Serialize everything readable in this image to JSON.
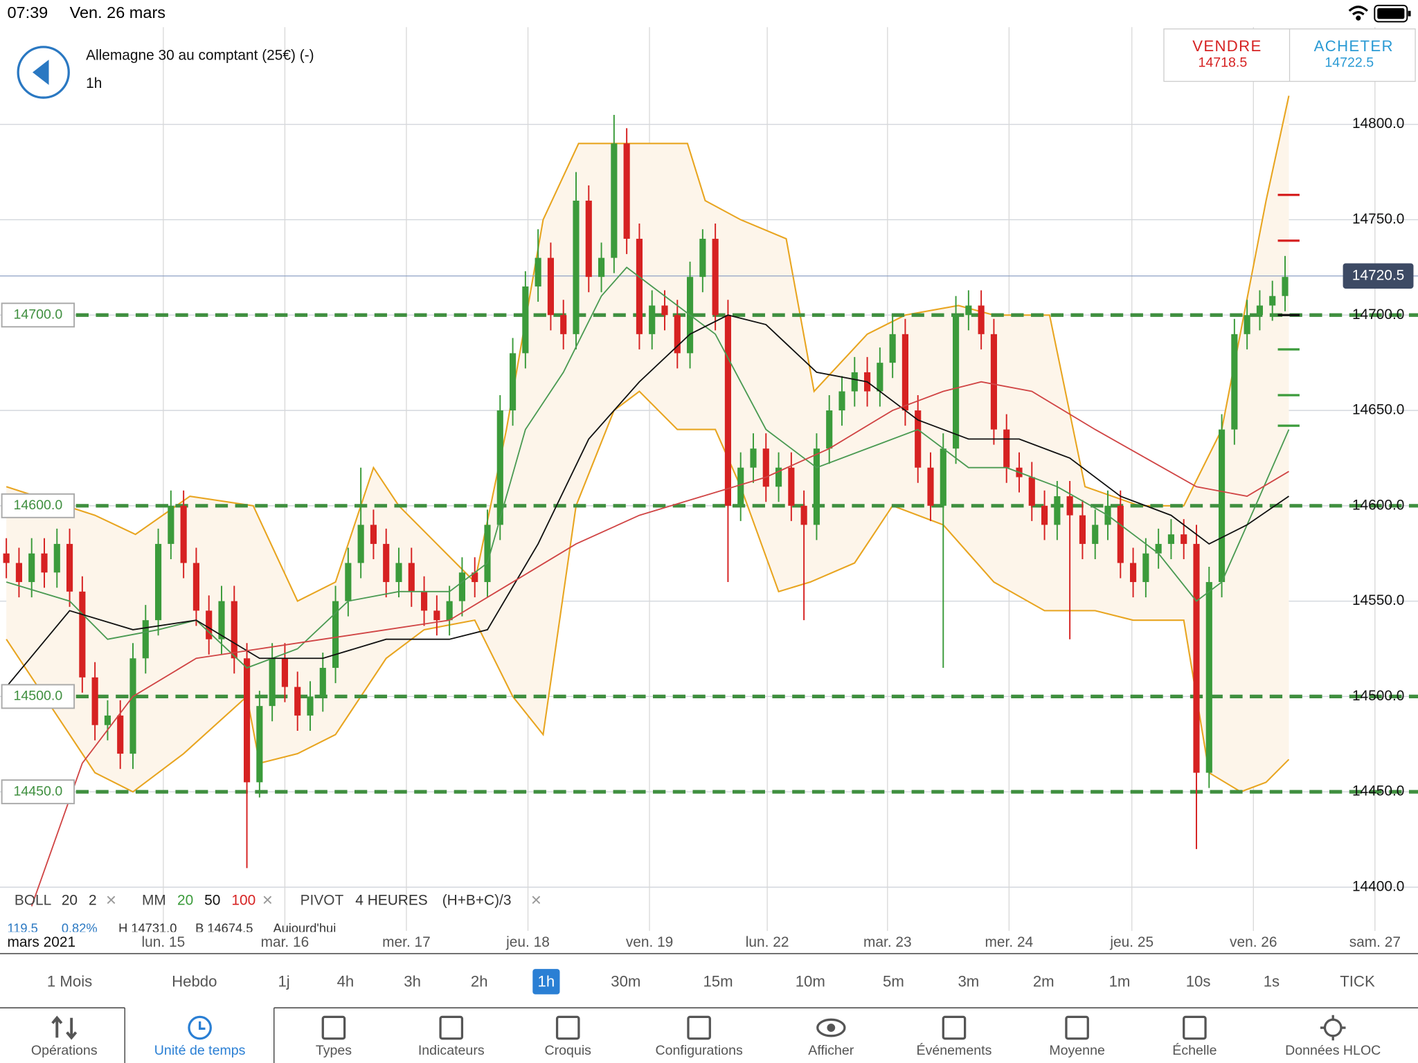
{
  "status_bar": {
    "time": "07:39",
    "date": "Ven. 26 mars"
  },
  "header": {
    "instrument": "Allemagne 30 au comptant (25€) (-)",
    "timeframe": "1h"
  },
  "quote": {
    "sell_label": "VENDRE",
    "sell_price": 14718.5,
    "buy_label": "ACHETER",
    "buy_price": 14722.5
  },
  "indicators": {
    "close_icon": "×",
    "boll": {
      "label": "BOLL",
      "period": 20,
      "deviation": 2
    },
    "mm": {
      "label": "MM",
      "periods": [
        20,
        50,
        100
      ]
    },
    "pivot": {
      "label": "PIVOT",
      "period": "4 HEURES",
      "formula": "(H+B+C)/3"
    },
    "info_row": [
      "119.5",
      "0.82%",
      "H 14731.0",
      "B 14674.5",
      "Aujourd'hui"
    ]
  },
  "chart_data": {
    "type": "candlestick",
    "open": [
      14575,
      14570,
      14560,
      14575,
      14565,
      14580,
      14555,
      14510,
      14485,
      14490,
      14470,
      14520,
      14540,
      14580,
      14600,
      14570,
      14545,
      14530,
      14550,
      14520,
      14455,
      14495,
      14520,
      14505,
      14490,
      14500,
      14515,
      14550,
      14570,
      14590,
      14580,
      14560,
      14570,
      14555,
      14545,
      14540,
      14550,
      14565,
      14560,
      14590,
      14650,
      14680,
      14715,
      14730,
      14700,
      14690,
      14760,
      14720,
      14730,
      14790,
      14740,
      14690,
      14705,
      14700,
      14680,
      14720,
      14740,
      14700,
      14600,
      14620,
      14630,
      14610,
      14620,
      14600,
      14590,
      14630,
      14650,
      14660,
      14670,
      14660,
      14675,
      14690,
      14650,
      14620,
      14600,
      14630,
      14700,
      14705,
      14690,
      14640,
      14620,
      14615,
      14600,
      14590,
      14605,
      14595,
      14580,
      14590,
      14600,
      14570,
      14560,
      14575,
      14580,
      14585,
      14580,
      14460,
      14560,
      14640,
      14690,
      14700,
      14705,
      14710
    ],
    "high": [
      14583,
      14578,
      14583,
      14583,
      14588,
      14588,
      14563,
      14518,
      14498,
      14498,
      14528,
      14548,
      14588,
      14608,
      14608,
      14578,
      14553,
      14558,
      14558,
      14528,
      14503,
      14528,
      14528,
      14513,
      14508,
      14523,
      14558,
      14578,
      14620,
      14598,
      14588,
      14578,
      14578,
      14563,
      14553,
      14558,
      14573,
      14573,
      14598,
      14658,
      14688,
      14723,
      14745,
      14738,
      14708,
      14775,
      14768,
      14738,
      14805,
      14798,
      14748,
      14713,
      14713,
      14708,
      14728,
      14745,
      14748,
      14708,
      14628,
      14638,
      14638,
      14628,
      14628,
      14608,
      14638,
      14658,
      14668,
      14678,
      14678,
      14683,
      14700,
      14698,
      14658,
      14628,
      14638,
      14710,
      14713,
      14713,
      14698,
      14648,
      14628,
      14623,
      14608,
      14613,
      14613,
      14603,
      14598,
      14608,
      14608,
      14578,
      14583,
      14588,
      14593,
      14593,
      14590,
      14568,
      14648,
      14698,
      14708,
      14713,
      14718,
      14731
    ],
    "low": [
      14562,
      14552,
      14552,
      14557,
      14557,
      14547,
      14502,
      14477,
      14477,
      14462,
      14462,
      14512,
      14532,
      14572,
      14562,
      14537,
      14522,
      14522,
      14512,
      14410,
      14447,
      14487,
      14497,
      14482,
      14482,
      14492,
      14507,
      14542,
      14562,
      14572,
      14552,
      14552,
      14547,
      14537,
      14532,
      14532,
      14542,
      14552,
      14552,
      14582,
      14642,
      14672,
      14707,
      14692,
      14682,
      14682,
      14712,
      14712,
      14722,
      14732,
      14682,
      14682,
      14692,
      14672,
      14672,
      14712,
      14692,
      14560,
      14592,
      14612,
      14602,
      14602,
      14592,
      14540,
      14582,
      14622,
      14642,
      14652,
      14652,
      14652,
      14667,
      14642,
      14612,
      14592,
      14515,
      14622,
      14692,
      14682,
      14632,
      14612,
      14607,
      14592,
      14582,
      14582,
      14530,
      14572,
      14572,
      14582,
      14562,
      14552,
      14552,
      14567,
      14572,
      14572,
      14420,
      14452,
      14552,
      14632,
      14682,
      14692,
      14697,
      14702
    ],
    "close": [
      14570,
      14560,
      14575,
      14565,
      14580,
      14555,
      14510,
      14485,
      14490,
      14470,
      14520,
      14540,
      14580,
      14600,
      14570,
      14545,
      14530,
      14550,
      14520,
      14455,
      14495,
      14520,
      14505,
      14490,
      14500,
      14515,
      14550,
      14570,
      14590,
      14580,
      14560,
      14570,
      14555,
      14545,
      14540,
      14550,
      14565,
      14560,
      14590,
      14650,
      14680,
      14715,
      14730,
      14700,
      14690,
      14760,
      14720,
      14730,
      14790,
      14740,
      14690,
      14705,
      14700,
      14680,
      14720,
      14740,
      14700,
      14600,
      14620,
      14630,
      14610,
      14620,
      14600,
      14590,
      14630,
      14650,
      14660,
      14670,
      14660,
      14675,
      14690,
      14650,
      14620,
      14600,
      14630,
      14700,
      14705,
      14690,
      14640,
      14620,
      14615,
      14600,
      14590,
      14605,
      14595,
      14580,
      14590,
      14600,
      14570,
      14560,
      14575,
      14580,
      14585,
      14580,
      14460,
      14560,
      14640,
      14690,
      14700,
      14705,
      14710,
      14720
    ],
    "up_color": "#3b9b3b",
    "down_color": "#d62222",
    "xlim": [
      -0.5,
      111.5
    ],
    "x_axis_caption": "mars 2021",
    "xticks": [
      {
        "value": 12.4,
        "label": "lun. 15"
      },
      {
        "value": 22.0,
        "label": "mar. 16"
      },
      {
        "value": 31.6,
        "label": "mer. 17"
      },
      {
        "value": 41.2,
        "label": "jeu. 18"
      },
      {
        "value": 50.8,
        "label": "ven. 19"
      },
      {
        "value": 60.1,
        "label": "lun. 22"
      },
      {
        "value": 69.6,
        "label": "mar. 23"
      },
      {
        "value": 79.2,
        "label": "mer. 24"
      },
      {
        "value": 88.9,
        "label": "jeu. 25"
      },
      {
        "value": 98.5,
        "label": "ven. 26"
      },
      {
        "value": 108.1,
        "label": "sam. 27"
      }
    ],
    "ylim": [
      14377,
      14851
    ],
    "yticks": [
      {
        "value": 14400,
        "label": "14400.0"
      },
      {
        "value": 14450,
        "label": "14450.0"
      },
      {
        "value": 14500,
        "label": "14500.0"
      },
      {
        "value": 14550,
        "label": "14550.0"
      },
      {
        "value": 14600,
        "label": "14600.0"
      },
      {
        "value": 14650,
        "label": "14650.0"
      },
      {
        "value": 14700,
        "label": "14700.0"
      },
      {
        "value": 14750,
        "label": "14750.0"
      },
      {
        "value": 14800,
        "label": "14800.0"
      }
    ],
    "grid": true,
    "bollinger": {
      "color": "#e8a520",
      "fill": "#fdf5ea",
      "upper": {
        "x": [
          0,
          7,
          10.2,
          14.5,
          19.5,
          23,
          26,
          29,
          31,
          34,
          37,
          39.5,
          42.4,
          45.2,
          49.5,
          53.8,
          55.2,
          58,
          61.6,
          63.8,
          68,
          71,
          75.2,
          78,
          82.4,
          85.2,
          89.5,
          93,
          96,
          99.5,
          101.3
        ],
        "values": [
          14610,
          14595,
          14585,
          14605,
          14600,
          14550,
          14560,
          14620,
          14600,
          14580,
          14560,
          14640,
          14750,
          14790,
          14790,
          14790,
          14760,
          14750,
          14740,
          14660,
          14690,
          14700,
          14705,
          14700,
          14700,
          14610,
          14600,
          14600,
          14640,
          14760,
          14815
        ]
      },
      "lower": {
        "x": [
          0,
          7,
          10,
          14,
          19,
          20,
          23,
          26,
          30,
          33,
          37,
          40,
          42.4,
          45,
          48,
          50,
          53,
          56,
          58,
          61,
          63.5,
          67,
          70,
          74,
          78,
          82,
          86,
          89,
          93,
          95,
          97.5,
          99.5,
          101.3
        ],
        "values": [
          14530,
          14460,
          14450,
          14470,
          14500,
          14465,
          14470,
          14480,
          14520,
          14535,
          14540,
          14500,
          14480,
          14600,
          14650,
          14660,
          14640,
          14640,
          14610,
          14555,
          14560,
          14570,
          14600,
          14590,
          14560,
          14545,
          14545,
          14540,
          14540,
          14460,
          14450,
          14455,
          14467
        ]
      }
    },
    "series": [
      {
        "color": "#4a9a52",
        "x": [
          0,
          5,
          8,
          12,
          15,
          19,
          23,
          27,
          31,
          35,
          38,
          41,
          44,
          47,
          49,
          52,
          56,
          60,
          64,
          68,
          72,
          76,
          79,
          83,
          87,
          91,
          94,
          96,
          99,
          101.3
        ],
        "values": [
          14560,
          14550,
          14530,
          14535,
          14540,
          14515,
          14525,
          14550,
          14555,
          14555,
          14570,
          14640,
          14670,
          14710,
          14725,
          14710,
          14690,
          14640,
          14620,
          14630,
          14640,
          14620,
          14620,
          14610,
          14595,
          14575,
          14550,
          14560,
          14605,
          14640
        ]
      },
      {
        "color": "#111111",
        "x": [
          0,
          5,
          10,
          15,
          20,
          25,
          30,
          35,
          38,
          42,
          46,
          50,
          54,
          57,
          60,
          64,
          68,
          72,
          76,
          80,
          84,
          88,
          92,
          95,
          98,
          101.3
        ],
        "values": [
          14505,
          14545,
          14535,
          14540,
          14520,
          14520,
          14530,
          14530,
          14535,
          14580,
          14635,
          14665,
          14690,
          14700,
          14695,
          14670,
          14665,
          14645,
          14635,
          14635,
          14625,
          14605,
          14595,
          14580,
          14590,
          14605
        ]
      },
      {
        "color": "#d04444",
        "x": [
          2,
          6,
          10,
          15,
          20,
          25,
          30,
          35,
          40,
          45,
          50,
          55,
          60,
          65,
          70,
          74,
          77,
          81,
          86,
          90,
          94,
          98,
          101.3
        ],
        "values": [
          14390,
          14465,
          14500,
          14520,
          14525,
          14530,
          14535,
          14540,
          14560,
          14580,
          14595,
          14605,
          14615,
          14630,
          14650,
          14660,
          14665,
          14660,
          14640,
          14625,
          14610,
          14605,
          14618
        ]
      }
    ],
    "pivot_color": "#3f8f3f",
    "pivot_levels": [
      {
        "value": 14700,
        "label": "14700.0"
      },
      {
        "value": 14600,
        "label": "14600.0"
      },
      {
        "value": 14500,
        "label": "14500.0"
      },
      {
        "value": 14450,
        "label": "14450.0"
      }
    ],
    "pivot_markers": [
      {
        "value": 14763,
        "color": "#d62222"
      },
      {
        "value": 14739,
        "color": "#d62222"
      },
      {
        "value": 14700,
        "color": "#111111"
      },
      {
        "value": 14682,
        "color": "#3b9b3b"
      },
      {
        "value": 14658,
        "color": "#3b9b3b"
      },
      {
        "value": 14642,
        "color": "#3b9b3b"
      }
    ],
    "current_price": 14720.5
  },
  "timeframes": {
    "items": [
      "1 Mois",
      "Hebdo",
      "1j",
      "4h",
      "3h",
      "2h",
      "1h",
      "30m",
      "15m",
      "10m",
      "5m",
      "3m",
      "2m",
      "1m",
      "10s",
      "1s",
      "TICK"
    ],
    "selected": 6
  },
  "tabs": {
    "items": [
      "Opérations",
      "Unité de temps",
      "Types",
      "Indicateurs",
      "Croquis",
      "Configurations",
      "Afficher",
      "Événements",
      "Moyenne",
      "Échelle",
      "Données HLOC"
    ],
    "selected": 1
  }
}
